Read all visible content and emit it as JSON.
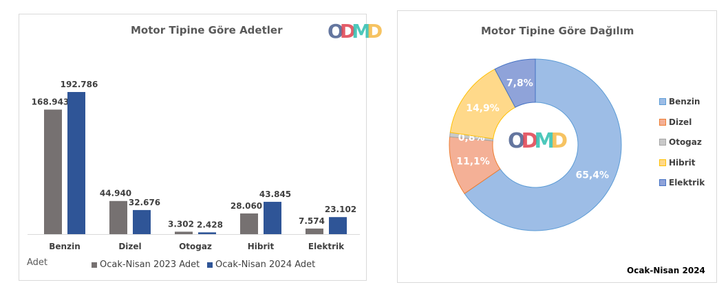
{
  "logo_text": "ODMD",
  "logo_colors": [
    "#4a5f8f",
    "#e0414f",
    "#2fbfb0",
    "#f5b947"
  ],
  "chart_data": [
    {
      "type": "bar",
      "title": "Motor Tipine Göre Adetler",
      "ylabel": "Adet",
      "categories": [
        "Benzin",
        "Dizel",
        "Otogaz",
        "Hibrit",
        "Elektrik"
      ],
      "series": [
        {
          "name": "Ocak-Nisan 2023 Adet",
          "color": "#767171",
          "values": [
            168943,
            44940,
            3302,
            28060,
            7574
          ],
          "labels": [
            "168.943",
            "44.940",
            "3.302",
            "28.060",
            "7.574"
          ]
        },
        {
          "name": "Ocak-Nisan 2024 Adet",
          "color": "#2f5597",
          "values": [
            192786,
            32676,
            2428,
            43845,
            23102
          ],
          "labels": [
            "192.786",
            "32.676",
            "2.428",
            "43.845",
            "23.102"
          ]
        }
      ],
      "legend": "bottom",
      "grid": false
    },
    {
      "type": "pie",
      "donut": true,
      "title": "Motor Tipine Göre Dağılım",
      "subtitle": "Ocak-Nisan 2024",
      "legend": "right",
      "slices": [
        {
          "name": "Benzin",
          "value": 65.4,
          "label": "65,4%",
          "color": "#9dbde6",
          "edge": "#5b9bd5"
        },
        {
          "name": "Dizel",
          "value": 11.1,
          "label": "11,1%",
          "color": "#f4b096",
          "edge": "#ed7d31"
        },
        {
          "name": "Otogaz",
          "value": 0.8,
          "label": "0,8%",
          "color": "#c9c9c9",
          "edge": "#a5a5a5"
        },
        {
          "name": "Hibrit",
          "value": 14.9,
          "label": "14,9%",
          "color": "#ffd98a",
          "edge": "#ffc000"
        },
        {
          "name": "Elektrik",
          "value": 7.8,
          "label": "7,8%",
          "color": "#8fa3d9",
          "edge": "#4472c4"
        }
      ]
    }
  ]
}
